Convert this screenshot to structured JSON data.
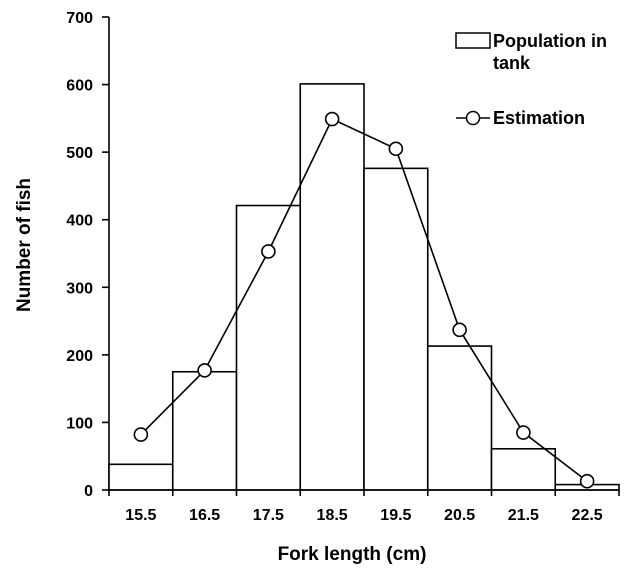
{
  "chart_data": {
    "type": "bar",
    "title": "",
    "xlabel": "Fork length (cm)",
    "ylabel": "Number of fish",
    "categories": [
      "15.5",
      "16.5",
      "17.5",
      "18.5",
      "19.5",
      "20.5",
      "21.5",
      "22.5"
    ],
    "ylim": [
      0,
      700
    ],
    "yticks": [
      "0",
      "100",
      "200",
      "300",
      "400",
      "500",
      "600",
      "700"
    ],
    "grid": false,
    "legend_position": "top-right",
    "series": [
      {
        "name": "Population in tank",
        "type": "bar",
        "values": [
          38,
          175,
          421,
          601,
          476,
          213,
          61,
          8
        ],
        "color": "#ffffff"
      },
      {
        "name": "Estimation",
        "type": "line",
        "values": [
          82,
          177,
          353,
          549,
          505,
          237,
          85,
          13
        ],
        "color": "#000000"
      }
    ],
    "legend": {
      "bar_label_line1": "Population in",
      "bar_label_line2": "tank",
      "line_label": "Estimation"
    }
  }
}
